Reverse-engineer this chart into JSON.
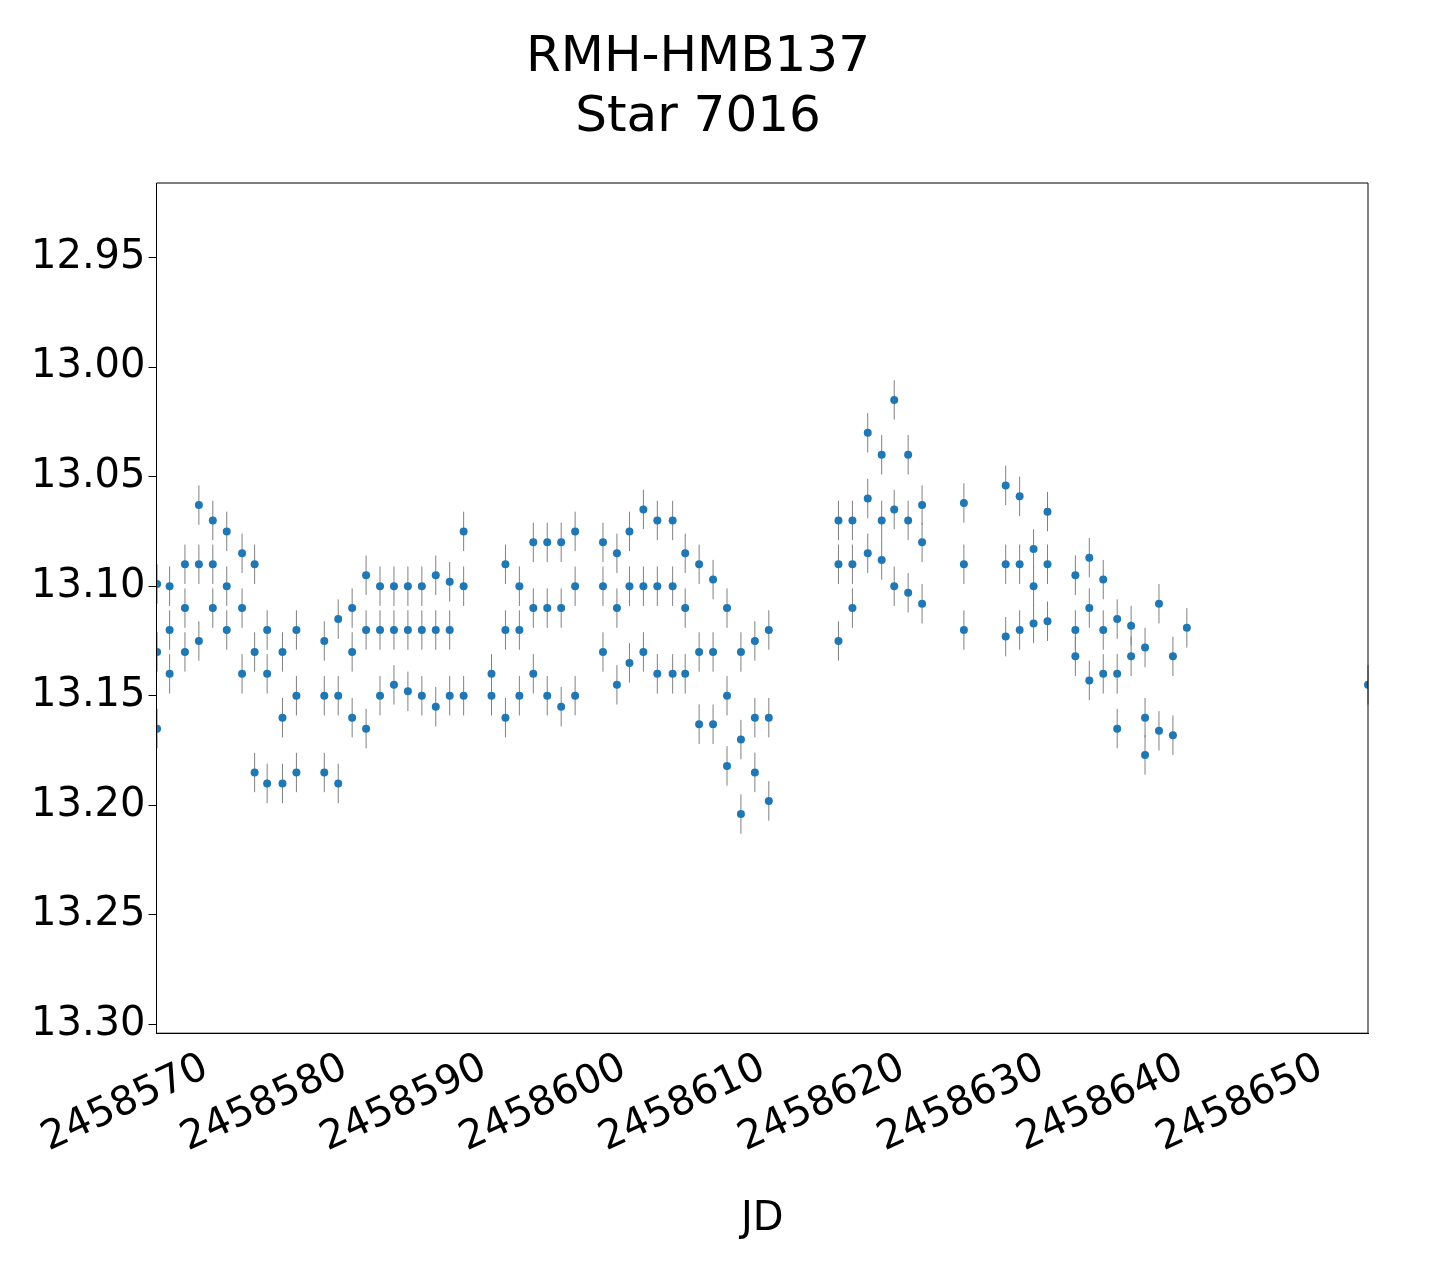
{
  "chart_data": {
    "type": "scatter",
    "title": "RMH-HMB137",
    "subtitle": "Star 7016",
    "xlabel": "JD",
    "color": "#1f77b4",
    "marker": "circle",
    "grid": false,
    "legend": false,
    "xlim": [
      2458566.46,
      2458653.4
    ],
    "xticks": [
      2458570,
      2458580,
      2458590,
      2458600,
      2458610,
      2458620,
      2458630,
      2458640,
      2458650
    ],
    "ylim": [
      13.304,
      12.916
    ],
    "yticks": [
      {
        "value": 12.95,
        "label": "12.95"
      },
      {
        "value": 13.0,
        "label": "13.00"
      },
      {
        "value": 13.05,
        "label": "13.05"
      },
      {
        "value": 13.1,
        "label": "13.10"
      },
      {
        "value": 13.15,
        "label": "13.15"
      },
      {
        "value": 13.2,
        "label": "13.20"
      },
      {
        "value": 13.25,
        "label": "13.25"
      },
      {
        "value": 13.3,
        "label": "13.30"
      }
    ],
    "x": [
      2458566.5,
      2458566.5,
      2458566.5,
      2458567.4,
      2458567.4,
      2458567.4,
      2458568.5,
      2458568.5,
      2458568.5,
      2458569.5,
      2458569.5,
      2458569.5,
      2458570.5,
      2458570.5,
      2458570.5,
      2458571.5,
      2458571.5,
      2458571.5,
      2458572.6,
      2458572.6,
      2458572.6,
      2458573.5,
      2458573.5,
      2458573.5,
      2458574.4,
      2458574.4,
      2458574.4,
      2458575.5,
      2458575.5,
      2458575.5,
      2458576.5,
      2458576.5,
      2458576.5,
      2458578.5,
      2458578.5,
      2458578.5,
      2458579.5,
      2458579.5,
      2458579.5,
      2458580.5,
      2458580.5,
      2458580.5,
      2458581.5,
      2458581.5,
      2458581.5,
      2458582.5,
      2458582.5,
      2458582.5,
      2458583.5,
      2458583.5,
      2458583.5,
      2458584.5,
      2458584.5,
      2458584.5,
      2458585.5,
      2458585.5,
      2458585.5,
      2458586.5,
      2458586.5,
      2458586.5,
      2458587.5,
      2458587.5,
      2458587.5,
      2458588.5,
      2458588.5,
      2458588.5,
      2458590.5,
      2458590.5,
      2458591.5,
      2458591.5,
      2458591.5,
      2458592.5,
      2458592.5,
      2458592.5,
      2458593.5,
      2458593.5,
      2458593.5,
      2458594.5,
      2458594.5,
      2458594.5,
      2458595.5,
      2458595.5,
      2458595.5,
      2458596.5,
      2458596.5,
      2458596.5,
      2458598.5,
      2458598.5,
      2458598.5,
      2458599.5,
      2458599.5,
      2458599.5,
      2458600.4,
      2458600.4,
      2458600.4,
      2458601.4,
      2458601.4,
      2458601.4,
      2458602.4,
      2458602.4,
      2458602.4,
      2458603.5,
      2458603.5,
      2458603.5,
      2458604.4,
      2458604.4,
      2458604.4,
      2458605.4,
      2458605.4,
      2458605.4,
      2458606.4,
      2458606.4,
      2458606.4,
      2458607.4,
      2458607.4,
      2458607.4,
      2458608.4,
      2458608.4,
      2458608.4,
      2458609.4,
      2458609.4,
      2458609.4,
      2458610.4,
      2458610.4,
      2458610.4,
      2458615.4,
      2458615.4,
      2458615.4,
      2458616.4,
      2458616.4,
      2458616.4,
      2458617.5,
      2458617.5,
      2458617.5,
      2458618.5,
      2458618.5,
      2458618.5,
      2458619.4,
      2458619.4,
      2458619.4,
      2458620.4,
      2458620.4,
      2458620.4,
      2458621.4,
      2458621.4,
      2458621.4,
      2458624.4,
      2458624.4,
      2458624.4,
      2458627.4,
      2458627.4,
      2458627.4,
      2458628.4,
      2458628.4,
      2458628.4,
      2458629.4,
      2458629.4,
      2458629.4,
      2458630.4,
      2458630.4,
      2458630.4,
      2458632.4,
      2458632.4,
      2458632.4,
      2458633.4,
      2458633.4,
      2458633.4,
      2458634.4,
      2458634.4,
      2458634.4,
      2458635.4,
      2458635.4,
      2458635.4,
      2458636.4,
      2458636.4,
      2458637.4,
      2458637.4,
      2458637.4,
      2458638.4,
      2458638.4,
      2458639.4,
      2458639.4,
      2458640.4,
      2458653.4
    ],
    "values": [
      13.099,
      13.13,
      13.165,
      13.1,
      13.12,
      13.14,
      13.09,
      13.11,
      13.13,
      13.063,
      13.09,
      13.125,
      13.07,
      13.09,
      13.11,
      13.075,
      13.1,
      13.12,
      13.085,
      13.11,
      13.14,
      13.09,
      13.13,
      13.185,
      13.12,
      13.14,
      13.19,
      13.13,
      13.16,
      13.19,
      13.12,
      13.15,
      13.185,
      13.125,
      13.15,
      13.185,
      13.115,
      13.15,
      13.19,
      13.11,
      13.13,
      13.16,
      13.095,
      13.12,
      13.165,
      13.1,
      13.12,
      13.15,
      13.1,
      13.12,
      13.145,
      13.1,
      13.12,
      13.148,
      13.1,
      13.12,
      13.15,
      13.095,
      13.12,
      13.155,
      13.098,
      13.12,
      13.15,
      13.075,
      13.1,
      13.15,
      13.14,
      13.15,
      13.09,
      13.12,
      13.16,
      13.1,
      13.12,
      13.15,
      13.08,
      13.11,
      13.14,
      13.08,
      13.11,
      13.15,
      13.08,
      13.11,
      13.155,
      13.075,
      13.1,
      13.15,
      13.08,
      13.1,
      13.13,
      13.085,
      13.11,
      13.145,
      13.075,
      13.1,
      13.135,
      13.065,
      13.1,
      13.13,
      13.07,
      13.1,
      13.14,
      13.07,
      13.1,
      13.14,
      13.085,
      13.11,
      13.14,
      13.09,
      13.13,
      13.163,
      13.097,
      13.13,
      13.163,
      13.11,
      13.15,
      13.182,
      13.13,
      13.17,
      13.204,
      13.125,
      13.16,
      13.185,
      13.12,
      13.16,
      13.198,
      13.07,
      13.09,
      13.125,
      13.07,
      13.09,
      13.11,
      13.03,
      13.06,
      13.085,
      13.04,
      13.07,
      13.088,
      13.015,
      13.065,
      13.1,
      13.04,
      13.07,
      13.103,
      13.063,
      13.08,
      13.108,
      13.062,
      13.09,
      13.12,
      13.054,
      13.09,
      13.123,
      13.059,
      13.09,
      13.12,
      13.083,
      13.1,
      13.117,
      13.066,
      13.09,
      13.116,
      13.095,
      13.12,
      13.132,
      13.087,
      13.11,
      13.143,
      13.097,
      13.12,
      13.14,
      13.115,
      13.14,
      13.165,
      13.118,
      13.132,
      13.128,
      13.16,
      13.177,
      13.108,
      13.166,
      13.132,
      13.168,
      13.119,
      13.145
    ],
    "errors": [
      0.009,
      0.009,
      0.009,
      0.009,
      0.009,
      0.009,
      0.009,
      0.009,
      0.009,
      0.009,
      0.009,
      0.009,
      0.009,
      0.009,
      0.009,
      0.009,
      0.009,
      0.009,
      0.009,
      0.009,
      0.009,
      0.009,
      0.009,
      0.009,
      0.009,
      0.009,
      0.009,
      0.009,
      0.009,
      0.009,
      0.009,
      0.009,
      0.009,
      0.009,
      0.009,
      0.009,
      0.009,
      0.009,
      0.009,
      0.009,
      0.009,
      0.009,
      0.009,
      0.009,
      0.009,
      0.009,
      0.009,
      0.009,
      0.009,
      0.009,
      0.009,
      0.009,
      0.009,
      0.009,
      0.009,
      0.009,
      0.009,
      0.009,
      0.009,
      0.009,
      0.009,
      0.009,
      0.009,
      0.009,
      0.009,
      0.009,
      0.009,
      0.009,
      0.009,
      0.009,
      0.009,
      0.009,
      0.009,
      0.009,
      0.009,
      0.009,
      0.009,
      0.009,
      0.009,
      0.009,
      0.009,
      0.009,
      0.009,
      0.009,
      0.009,
      0.009,
      0.009,
      0.009,
      0.009,
      0.009,
      0.009,
      0.009,
      0.009,
      0.009,
      0.009,
      0.009,
      0.009,
      0.009,
      0.009,
      0.009,
      0.009,
      0.009,
      0.009,
      0.009,
      0.009,
      0.009,
      0.009,
      0.009,
      0.009,
      0.009,
      0.009,
      0.009,
      0.009,
      0.009,
      0.009,
      0.009,
      0.009,
      0.009,
      0.009,
      0.009,
      0.009,
      0.009,
      0.009,
      0.009,
      0.009,
      0.009,
      0.009,
      0.009,
      0.009,
      0.009,
      0.009,
      0.009,
      0.009,
      0.009,
      0.009,
      0.009,
      0.009,
      0.009,
      0.009,
      0.009,
      0.009,
      0.009,
      0.009,
      0.009,
      0.009,
      0.009,
      0.009,
      0.009,
      0.009,
      0.009,
      0.009,
      0.009,
      0.009,
      0.009,
      0.009,
      0.009,
      0.009,
      0.009,
      0.009,
      0.009,
      0.009,
      0.009,
      0.009,
      0.009,
      0.009,
      0.009,
      0.009,
      0.009,
      0.009,
      0.009,
      0.009,
      0.009,
      0.009,
      0.009,
      0.009,
      0.009,
      0.009,
      0.009,
      0.009,
      0.009,
      0.009,
      0.009,
      0.009,
      0.009
    ]
  }
}
